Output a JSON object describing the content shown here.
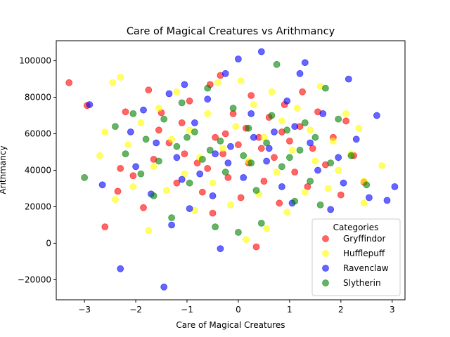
{
  "chart_data": {
    "type": "scatter",
    "title": "Care of Magical Creatures vs Arithmancy",
    "xlabel": "Care of Magical Creatures",
    "ylabel": "Arithmancy",
    "xlim": [
      -3.55,
      3.25
    ],
    "ylim": [
      -31000,
      111000
    ],
    "xticks": [
      -3,
      -2,
      -1,
      0,
      1,
      2,
      3
    ],
    "xtick_labels": [
      "−3",
      "−2",
      "−1",
      "0",
      "1",
      "2",
      "3"
    ],
    "yticks": [
      -20000,
      0,
      20000,
      40000,
      60000,
      80000,
      100000
    ],
    "ytick_labels": [
      "−20000",
      "0",
      "20000",
      "40000",
      "60000",
      "80000",
      "100000"
    ],
    "grid": false,
    "legend": {
      "title": "Categories",
      "placement": "lower-right"
    },
    "point_alpha": 0.6,
    "series": [
      {
        "name": "Gryffindor",
        "color": "#ff0000",
        "points": [
          [
            -3.3,
            88000
          ],
          [
            -2.95,
            75500
          ],
          [
            -2.6,
            9000
          ],
          [
            -2.35,
            28500
          ],
          [
            -2.3,
            41000
          ],
          [
            -2.2,
            72000
          ],
          [
            -2.05,
            37000
          ],
          [
            -1.85,
            19500
          ],
          [
            -1.75,
            84000
          ],
          [
            -1.65,
            46000
          ],
          [
            -1.55,
            62000
          ],
          [
            -1.5,
            71500
          ],
          [
            -1.35,
            55000
          ],
          [
            -1.2,
            33000
          ],
          [
            -1.1,
            66000
          ],
          [
            -0.95,
            78000
          ],
          [
            -0.8,
            44000
          ],
          [
            -0.7,
            28000
          ],
          [
            -0.55,
            87000
          ],
          [
            -0.5,
            16500
          ],
          [
            -0.45,
            58000
          ],
          [
            -0.35,
            92000
          ],
          [
            -0.3,
            49000
          ],
          [
            -0.2,
            36000
          ],
          [
            -0.1,
            71000
          ],
          [
            0.0,
            54000
          ],
          [
            0.05,
            25000
          ],
          [
            0.15,
            63000
          ],
          [
            0.2,
            44000
          ],
          [
            0.25,
            81000
          ],
          [
            0.35,
            -2000
          ],
          [
            0.4,
            58000
          ],
          [
            0.5,
            34000
          ],
          [
            0.6,
            69000
          ],
          [
            0.7,
            47000
          ],
          [
            0.8,
            22000
          ],
          [
            0.9,
            76000
          ],
          [
            1.0,
            56000
          ],
          [
            1.1,
            39000
          ],
          [
            1.2,
            64000
          ],
          [
            1.25,
            83000
          ],
          [
            1.35,
            31000
          ],
          [
            1.45,
            52000
          ],
          [
            1.55,
            72000
          ],
          [
            1.7,
            43000
          ],
          [
            1.85,
            58000
          ],
          [
            2.0,
            26500
          ],
          [
            2.1,
            67000
          ],
          [
            2.25,
            48000
          ],
          [
            2.45,
            33500
          ],
          [
            -1.05,
            49000
          ],
          [
            -0.25,
            60000
          ],
          [
            0.45,
            52000
          ],
          [
            0.85,
            61000
          ],
          [
            -0.6,
            41000
          ]
        ]
      },
      {
        "name": "Hufflepuff",
        "color": "#ffff00",
        "points": [
          [
            -2.7,
            48000
          ],
          [
            -2.6,
            61000
          ],
          [
            -2.45,
            88000
          ],
          [
            -2.4,
            24000
          ],
          [
            -2.3,
            91000
          ],
          [
            -2.15,
            54000
          ],
          [
            -2.05,
            31000
          ],
          [
            -1.9,
            66000
          ],
          [
            -1.75,
            7000
          ],
          [
            -1.65,
            42000
          ],
          [
            -1.55,
            74000
          ],
          [
            -1.4,
            29000
          ],
          [
            -1.3,
            57000
          ],
          [
            -1.2,
            83000
          ],
          [
            -1.05,
            38000
          ],
          [
            -0.95,
            62000
          ],
          [
            -0.85,
            18000
          ],
          [
            -0.75,
            47000
          ],
          [
            -0.6,
            71000
          ],
          [
            -0.5,
            33000
          ],
          [
            -0.4,
            88000
          ],
          [
            -0.3,
            52000
          ],
          [
            -0.15,
            21000
          ],
          [
            -0.05,
            64000
          ],
          [
            0.05,
            89000
          ],
          [
            0.15,
            2000
          ],
          [
            0.2,
            45000
          ],
          [
            0.3,
            76000
          ],
          [
            0.4,
            27000
          ],
          [
            0.5,
            58000
          ],
          [
            0.55,
            8000
          ],
          [
            0.65,
            83000
          ],
          [
            0.75,
            39000
          ],
          [
            0.85,
            67000
          ],
          [
            0.95,
            17000
          ],
          [
            1.05,
            51000
          ],
          [
            1.15,
            74000
          ],
          [
            1.3,
            28000
          ],
          [
            1.4,
            62000
          ],
          [
            1.5,
            45000
          ],
          [
            1.6,
            86000
          ],
          [
            1.75,
            30000
          ],
          [
            1.85,
            56000
          ],
          [
            1.95,
            40000
          ],
          [
            2.1,
            71000
          ],
          [
            2.2,
            49000
          ],
          [
            2.35,
            63000
          ],
          [
            2.45,
            22000
          ],
          [
            2.8,
            42500
          ],
          [
            2.45,
            34000
          ]
        ]
      },
      {
        "name": "Ravenclaw",
        "color": "#0000ff",
        "points": [
          [
            -2.9,
            76000
          ],
          [
            -2.65,
            32000
          ],
          [
            -2.3,
            -14000
          ],
          [
            -2.1,
            61000
          ],
          [
            -2.0,
            42000
          ],
          [
            -1.85,
            73000
          ],
          [
            -1.7,
            27000
          ],
          [
            -1.6,
            55000
          ],
          [
            -1.45,
            -24000
          ],
          [
            -1.35,
            82000
          ],
          [
            -1.3,
            10000
          ],
          [
            -1.2,
            47000
          ],
          [
            -1.05,
            87000
          ],
          [
            -0.95,
            19000
          ],
          [
            -0.85,
            66000
          ],
          [
            -0.75,
            38000
          ],
          [
            -0.6,
            79000
          ],
          [
            -0.5,
            26000
          ],
          [
            -0.35,
            -3000
          ],
          [
            -0.25,
            93000
          ],
          [
            -0.15,
            53000
          ],
          [
            0.0,
            101000
          ],
          [
            0.1,
            36000
          ],
          [
            0.25,
            71000
          ],
          [
            0.45,
            105000
          ],
          [
            0.55,
            45000
          ],
          [
            0.7,
            61000
          ],
          [
            0.85,
            31000
          ],
          [
            0.95,
            78000
          ],
          [
            1.05,
            22000
          ],
          [
            1.2,
            93000
          ],
          [
            1.3,
            99000
          ],
          [
            1.4,
            55000
          ],
          [
            1.55,
            40000
          ],
          [
            1.65,
            71000
          ],
          [
            1.8,
            18500
          ],
          [
            1.95,
            47000
          ],
          [
            2.05,
            33000
          ],
          [
            2.15,
            90000
          ],
          [
            2.3,
            57000
          ],
          [
            2.55,
            25000
          ],
          [
            2.9,
            23500
          ],
          [
            3.05,
            31000
          ],
          [
            2.7,
            70000
          ],
          [
            -0.45,
            49000
          ],
          [
            0.3,
            58000
          ],
          [
            -1.1,
            35000
          ],
          [
            1.1,
            64000
          ],
          [
            -0.2,
            44000
          ],
          [
            0.6,
            52000
          ]
        ]
      },
      {
        "name": "Slytherin",
        "color": "#008000",
        "points": [
          [
            -3.0,
            36000
          ],
          [
            -2.4,
            64000
          ],
          [
            -2.2,
            49000
          ],
          [
            -2.05,
            71000
          ],
          [
            -1.9,
            38000
          ],
          [
            -1.8,
            57000
          ],
          [
            -1.65,
            26000
          ],
          [
            -1.55,
            45000
          ],
          [
            -1.45,
            68000
          ],
          [
            -1.3,
            14000
          ],
          [
            -1.2,
            53000
          ],
          [
            -1.1,
            77000
          ],
          [
            -0.95,
            33000
          ],
          [
            -0.85,
            61000
          ],
          [
            -0.7,
            46000
          ],
          [
            -0.6,
            85000
          ],
          [
            -0.45,
            9000
          ],
          [
            -0.35,
            56000
          ],
          [
            -0.25,
            39000
          ],
          [
            -0.1,
            74000
          ],
          [
            0.0,
            6000
          ],
          [
            0.1,
            48000
          ],
          [
            0.2,
            63000
          ],
          [
            0.35,
            29000
          ],
          [
            0.45,
            11000
          ],
          [
            0.55,
            55000
          ],
          [
            0.65,
            70000
          ],
          [
            0.75,
            98000
          ],
          [
            0.85,
            42000
          ],
          [
            0.95,
            62000
          ],
          [
            1.1,
            23000
          ],
          [
            1.2,
            51000
          ],
          [
            1.3,
            66000
          ],
          [
            1.4,
            34000
          ],
          [
            1.5,
            58000
          ],
          [
            1.6,
            21000
          ],
          [
            1.7,
            85000
          ],
          [
            1.8,
            44000
          ],
          [
            1.95,
            68000
          ],
          [
            2.2,
            48000
          ],
          [
            2.5,
            32000
          ],
          [
            -0.55,
            51000
          ],
          [
            0.25,
            44000
          ],
          [
            -1.0,
            58000
          ],
          [
            1.0,
            47000
          ]
        ]
      }
    ]
  }
}
